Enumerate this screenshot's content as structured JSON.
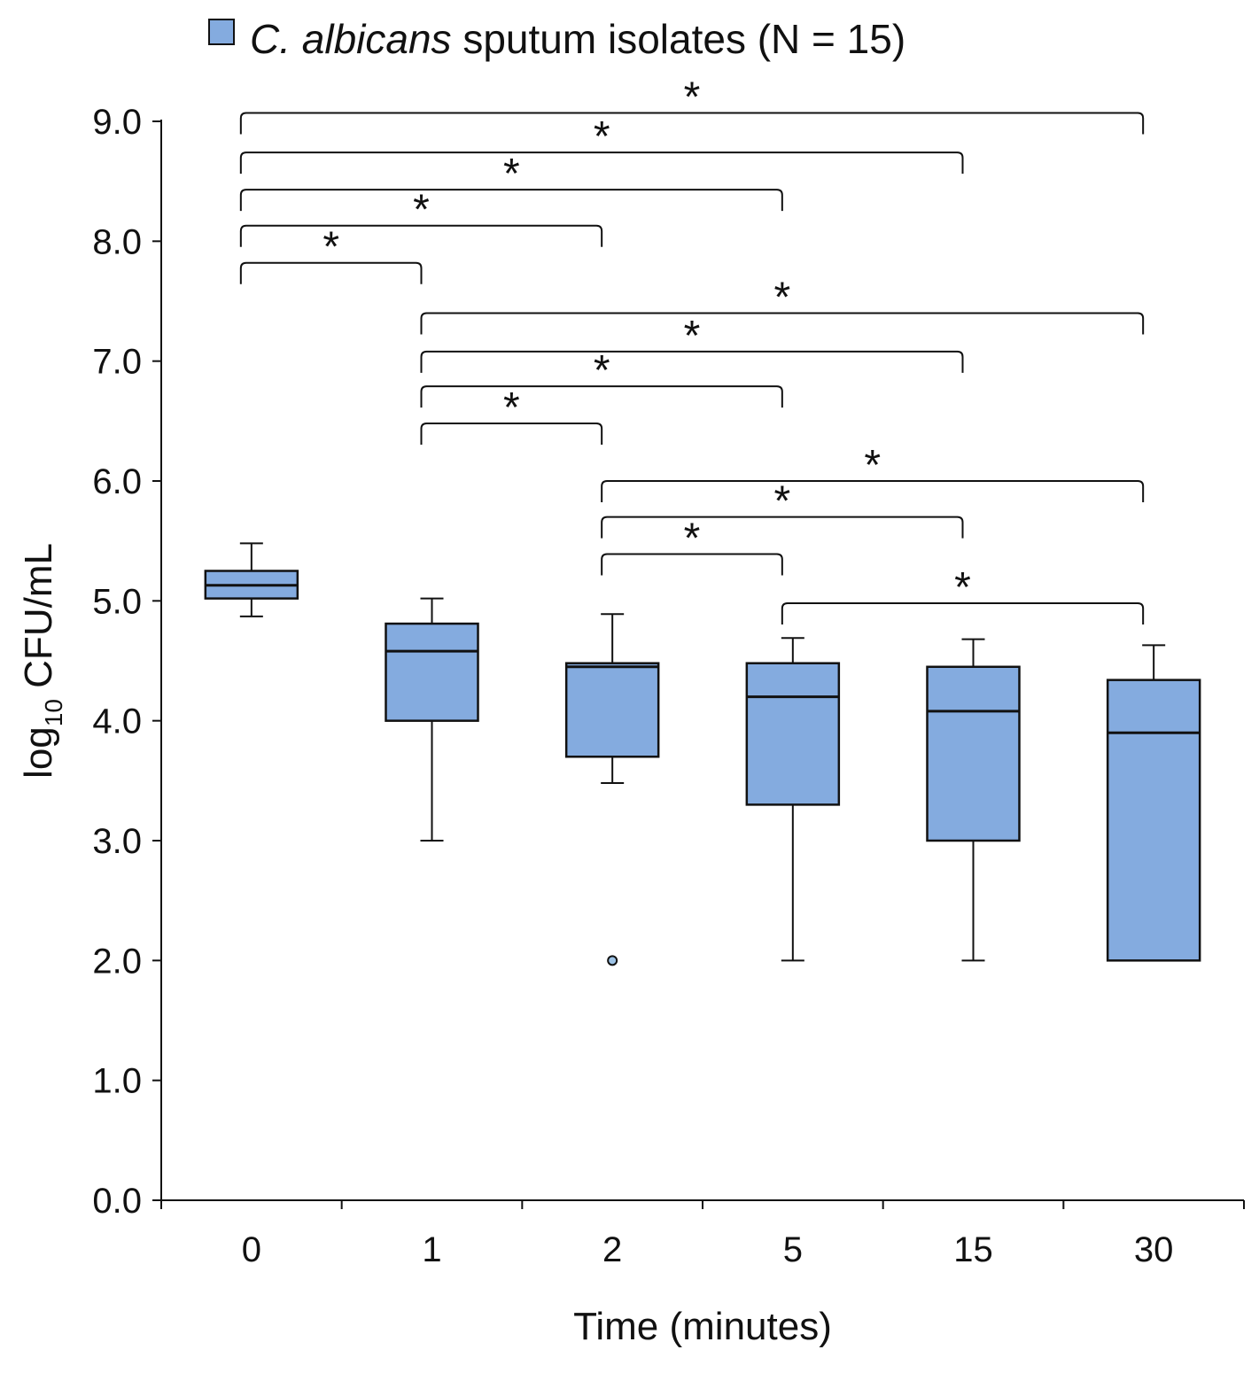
{
  "chart_data": {
    "type": "box",
    "legend": {
      "label_italic": "C. albicans",
      "label_rest": " sputum isolates (N = 15)",
      "swatch_color": "#84abdf",
      "position": "top"
    },
    "xlabel": "Time (minutes)",
    "ylabel_main": "log",
    "ylabel_sub": "10",
    "ylabel_tail": " CFU/mL",
    "ylim": [
      0,
      9
    ],
    "y_ticks": [
      "0.0",
      "1.0",
      "2.0",
      "3.0",
      "4.0",
      "5.0",
      "6.0",
      "7.0",
      "8.0",
      "9.0"
    ],
    "categories": [
      "0",
      "1",
      "2",
      "5",
      "15",
      "30"
    ],
    "boxes": [
      {
        "category": "0",
        "min": 4.87,
        "q1": 5.02,
        "median": 5.13,
        "q3": 5.25,
        "max": 5.48,
        "outliers": []
      },
      {
        "category": "1",
        "min": 3.0,
        "q1": 4.0,
        "median": 4.58,
        "q3": 4.81,
        "max": 5.02,
        "outliers": []
      },
      {
        "category": "2",
        "min": 3.48,
        "q1": 3.7,
        "median": 4.45,
        "q3": 4.48,
        "max": 4.89,
        "outliers": [
          2.0
        ]
      },
      {
        "category": "5",
        "min": 2.0,
        "q1": 3.3,
        "median": 4.2,
        "q3": 4.48,
        "max": 4.69,
        "outliers": []
      },
      {
        "category": "15",
        "min": 2.0,
        "q1": 3.0,
        "median": 4.08,
        "q3": 4.45,
        "max": 4.68,
        "outliers": []
      },
      {
        "category": "30",
        "min": 2.0,
        "q1": 2.0,
        "median": 3.9,
        "q3": 4.34,
        "max": 4.63,
        "outliers": []
      }
    ],
    "significance": [
      {
        "from": "0",
        "to": "30",
        "level": 9.07,
        "label": "*"
      },
      {
        "from": "0",
        "to": "15",
        "level": 8.74,
        "label": "*"
      },
      {
        "from": "0",
        "to": "5",
        "level": 8.43,
        "label": "*"
      },
      {
        "from": "0",
        "to": "2",
        "level": 8.13,
        "label": "*"
      },
      {
        "from": "0",
        "to": "1",
        "level": 7.82,
        "label": "*"
      },
      {
        "from": "1",
        "to": "30",
        "level": 7.4,
        "label": "*"
      },
      {
        "from": "1",
        "to": "15",
        "level": 7.08,
        "label": "*"
      },
      {
        "from": "1",
        "to": "5",
        "level": 6.79,
        "label": "*"
      },
      {
        "from": "1",
        "to": "2",
        "level": 6.48,
        "label": "*"
      },
      {
        "from": "2",
        "to": "30",
        "level": 6.0,
        "label": "*"
      },
      {
        "from": "2",
        "to": "15",
        "level": 5.7,
        "label": "*"
      },
      {
        "from": "2",
        "to": "5",
        "level": 5.39,
        "label": "*"
      },
      {
        "from": "5",
        "to": "30",
        "level": 4.98,
        "label": "*"
      }
    ],
    "colors": {
      "box_fill": "#84abdf",
      "line": "#111111",
      "outlier_fill": "#9dc3e6"
    }
  }
}
